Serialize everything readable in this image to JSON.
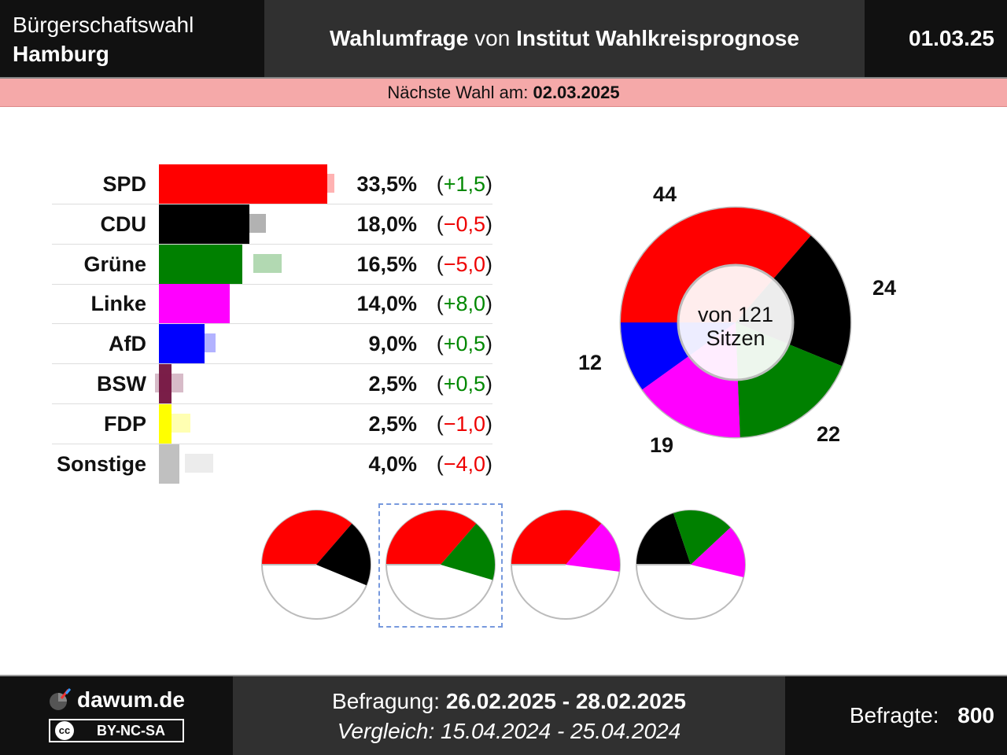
{
  "header": {
    "election_line1": "Bürgerschaftswahl",
    "election_line2": "Hamburg",
    "title_prefix": "Wahlumfrage",
    "title_von": "von",
    "institute": "Institut Wahlkreisprognose",
    "date": "01.03.25"
  },
  "next_election": {
    "label": "Nächste Wahl am:",
    "date": "02.03.2025"
  },
  "chart_data": [
    {
      "type": "bar",
      "categories": [
        "SPD",
        "CDU",
        "Grüne",
        "Linke",
        "AfD",
        "BSW",
        "FDP",
        "Sonstige"
      ],
      "series": [
        {
          "values": [
            33.5,
            18.0,
            16.5,
            14.0,
            9.0,
            2.5,
            2.5,
            4.0
          ]
        },
        {
          "values": [
            32.0,
            18.5,
            21.5,
            6.0,
            8.5,
            2.0,
            3.5,
            8.0
          ]
        }
      ],
      "value_labels": [
        "33,5%",
        "18,0%",
        "16,5%",
        "14,0%",
        "9,0%",
        "2,5%",
        "2,5%",
        "4,0%"
      ],
      "change_labels": [
        "+1,5",
        "−0,5",
        "−5,0",
        "+8,0",
        "+0,5",
        "+0,5",
        "−1,0",
        "−4,0"
      ],
      "change_signs": [
        "pos",
        "neg",
        "neg",
        "pos",
        "pos",
        "pos",
        "neg",
        "neg"
      ],
      "colors": [
        "#ff0000",
        "#000000",
        "#008000",
        "#ff00ff",
        "#0000ff",
        "#7a1e48",
        "#ffff00",
        "#c0c0c0"
      ]
    },
    {
      "type": "pie",
      "categories": [
        "SPD",
        "CDU",
        "Grüne",
        "Linke",
        "AfD"
      ],
      "values": [
        44,
        24,
        22,
        19,
        12
      ],
      "colors": [
        "#ff0000",
        "#000000",
        "#008000",
        "#ff00ff",
        "#0000ff"
      ],
      "total": 121,
      "center_line1": "von 121",
      "center_line2": "Sitzen"
    }
  ],
  "coalitions": [
    {
      "parties": [
        "SPD",
        "CDU"
      ],
      "selected": false
    },
    {
      "parties": [
        "SPD",
        "Grüne"
      ],
      "selected": true
    },
    {
      "parties": [
        "SPD",
        "Linke"
      ],
      "selected": false
    },
    {
      "parties": [
        "CDU",
        "Grüne",
        "Linke"
      ],
      "selected": false
    }
  ],
  "footer": {
    "site": "dawum.de",
    "license": "BY-NC-SA",
    "license_icon": "cc",
    "survey_label": "Befragung:",
    "survey_dates": "26.02.2025 - 28.02.2025",
    "compare_label": "Vergleich:",
    "compare_dates": "15.04.2024 - 25.04.2024",
    "respondents_label": "Befragte:",
    "respondents": "800"
  }
}
